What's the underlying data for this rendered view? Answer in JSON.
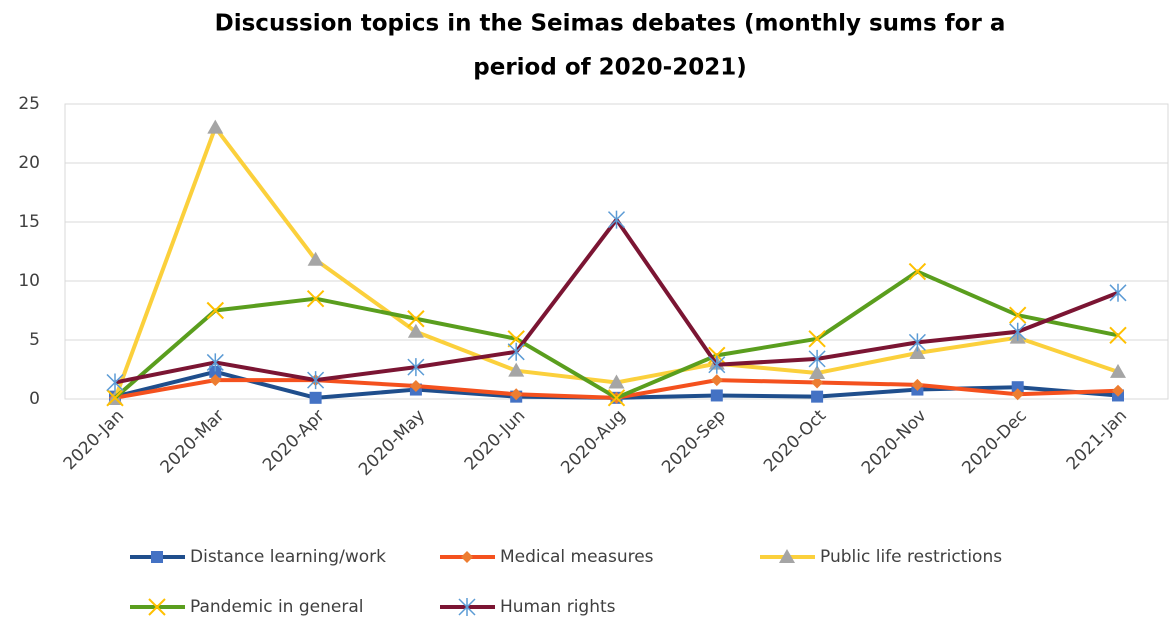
{
  "chart_data": {
    "type": "line",
    "title": [
      "Discussion topics in the Seimas debates (monthly sums for a",
      "period of 2020-2021)"
    ],
    "categories": [
      "2020-Jan",
      "2020-Mar",
      "2020-Apr",
      "2020-May",
      "2020-Jun",
      "2020-Aug",
      "2020-Sep",
      "2020-Oct",
      "2020-Nov",
      "2020-Dec",
      "2021-Jan"
    ],
    "series": [
      {
        "name": "Distance learning/work",
        "color": "#1f4e8c",
        "marker": "square",
        "marker_color": "#4472c4",
        "values": [
          0.2,
          2.3,
          0.1,
          0.8,
          0.2,
          0.1,
          0.3,
          0.2,
          0.8,
          1.0,
          0.3
        ]
      },
      {
        "name": "Medical measures",
        "color": "#f4511e",
        "marker": "diamond",
        "marker_color": "#ed7d31",
        "values": [
          0.1,
          1.6,
          1.6,
          1.1,
          0.4,
          0.1,
          1.6,
          1.4,
          1.2,
          0.4,
          0.7
        ]
      },
      {
        "name": "Public life restrictions",
        "color": "#fbd03c",
        "marker": "triangle",
        "marker_color": "#a5a5a5",
        "values": [
          0,
          23,
          11.8,
          5.7,
          2.4,
          1.4,
          3.0,
          2.2,
          3.9,
          5.2,
          2.3
        ]
      },
      {
        "name": "Pandemic in general",
        "color": "#5a9e1e",
        "marker": "x",
        "marker_color": "#ffc000",
        "values": [
          0.1,
          7.5,
          8.5,
          6.8,
          5.1,
          0.1,
          3.7,
          5.1,
          10.8,
          7.1,
          5.4
        ]
      },
      {
        "name": "Human rights",
        "color": "#7b1533",
        "marker": "star",
        "marker_color": "#5b9bd5",
        "values": [
          1.4,
          3.1,
          1.6,
          2.7,
          4.0,
          15.2,
          2.9,
          3.4,
          4.8,
          5.7,
          9.0
        ]
      }
    ],
    "ylim": [
      0,
      25
    ],
    "yticks": [
      0,
      5,
      10,
      15,
      20,
      25
    ],
    "grid": true,
    "legend": "bottom"
  }
}
